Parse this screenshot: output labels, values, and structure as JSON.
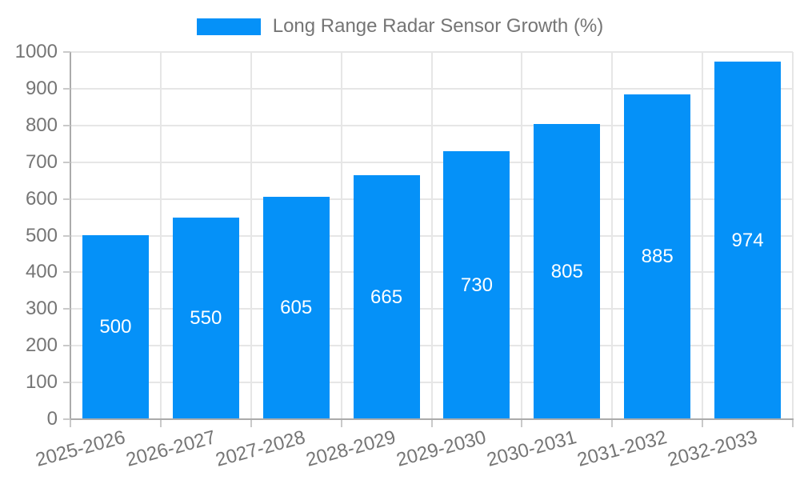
{
  "chart_data": {
    "type": "bar",
    "title": "Long Range Radar Sensor Growth (%)",
    "categories": [
      "2025-2026",
      "2026-2027",
      "2027-2028",
      "2028-2029",
      "2029-2030",
      "2030-2031",
      "2031-2032",
      "2032-2033"
    ],
    "series": [
      {
        "name": "Long Range Radar Sensor Growth (%)",
        "values": [
          500,
          550,
          605,
          665,
          730,
          805,
          885,
          974
        ]
      }
    ],
    "bar_value_labels": [
      "500",
      "550",
      "605",
      "665",
      "730",
      "805",
      "885",
      "974"
    ],
    "xlabel": "",
    "ylabel": "",
    "ylim": [
      0,
      1000
    ],
    "ytick_step": 100,
    "ytick_labels": [
      "0",
      "100",
      "200",
      "300",
      "400",
      "500",
      "600",
      "700",
      "800",
      "900",
      "1000"
    ],
    "grid": true,
    "legend_position": "top-center"
  },
  "style": {
    "bar_color": "#0591f8",
    "grid_color": "#e6e6e6",
    "axis_color": "#ababab",
    "tick_color": "#c9c9c9",
    "text_color": "#757575",
    "bar_label_color": "#ffffff",
    "background": "#ffffff"
  }
}
